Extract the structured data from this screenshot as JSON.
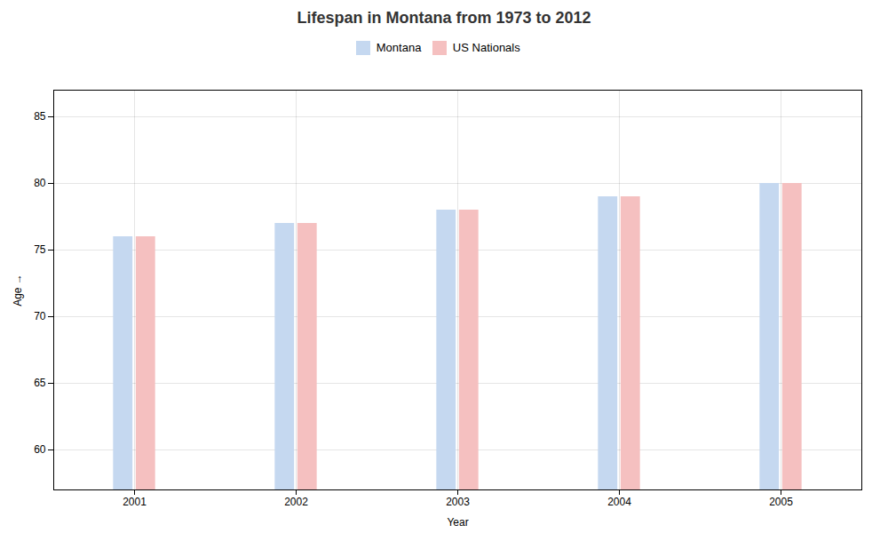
{
  "chart_data": {
    "type": "bar",
    "title": "Lifespan in Montana from 1973 to 2012",
    "xlabel": "Year",
    "ylabel": "Age",
    "categories": [
      "2001",
      "2002",
      "2003",
      "2004",
      "2005"
    ],
    "series": [
      {
        "name": "Montana",
        "color": "#c5d8f0",
        "values": [
          76,
          77,
          78,
          79,
          80
        ]
      },
      {
        "name": "US Nationals",
        "color": "#f5c0c0",
        "values": [
          76,
          77,
          78,
          79,
          80
        ]
      }
    ],
    "ylim": [
      57,
      87
    ],
    "yticks": [
      60,
      65,
      70,
      75,
      80,
      85
    ],
    "grid": true,
    "legend": "top"
  }
}
